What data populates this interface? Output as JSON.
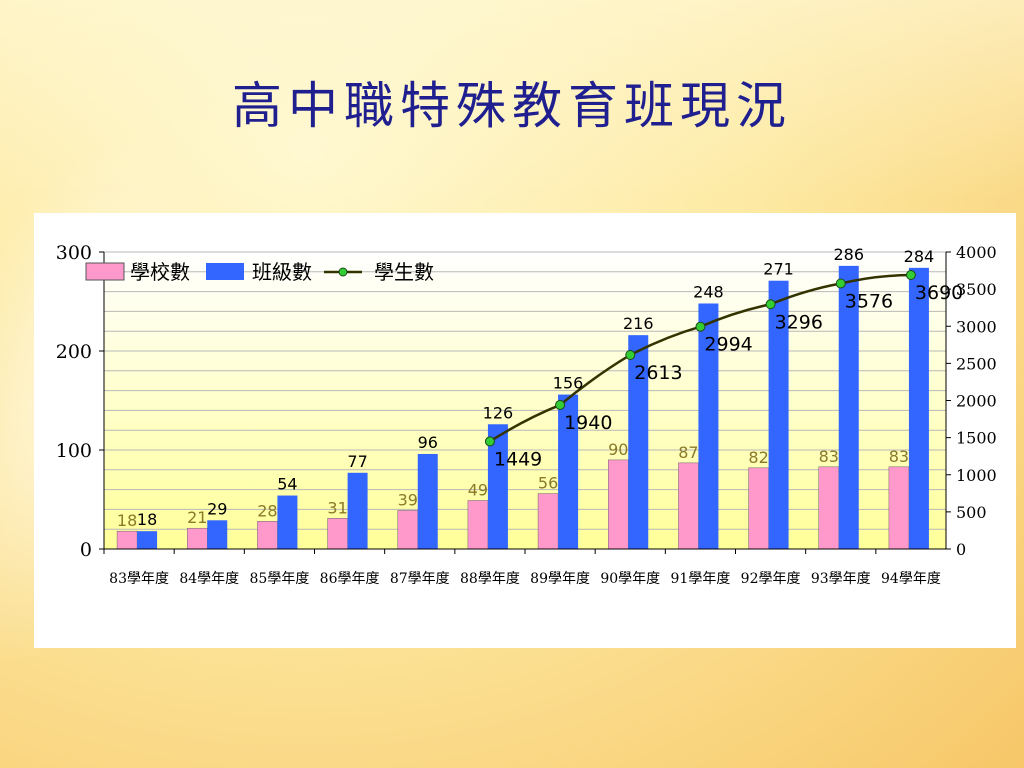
{
  "title": "高中職特殊教育班現況",
  "chart_data": {
    "type": "bar",
    "categories": [
      "83學年度",
      "84學年度",
      "85學年度",
      "86學年度",
      "87學年度",
      "88學年度",
      "89學年度",
      "90學年度",
      "91學年度",
      "92學年度",
      "93學年度",
      "94學年度"
    ],
    "series": [
      {
        "name": "學校數",
        "chart": "bar",
        "axis": "left",
        "color": "#ff99cc",
        "values": [
          18,
          21,
          28,
          31,
          39,
          49,
          56,
          90,
          87,
          82,
          83,
          83
        ],
        "label_color": "#8a7a2a"
      },
      {
        "name": "班級數",
        "chart": "bar",
        "axis": "left",
        "color": "#3366ff",
        "values": [
          18,
          29,
          54,
          77,
          96,
          126,
          156,
          216,
          248,
          271,
          286,
          284
        ],
        "label_color": "#000000"
      },
      {
        "name": "學生數",
        "chart": "line",
        "axis": "right",
        "color": "#333300",
        "marker_color": "#33cc33",
        "values": [
          null,
          null,
          null,
          null,
          null,
          1449,
          1940,
          2613,
          2994,
          3296,
          3576,
          3690
        ],
        "label_color": "#000000"
      }
    ],
    "left_axis": {
      "min": 0,
      "max": 300,
      "ticks": [
        "0",
        "100",
        "200",
        "300"
      ]
    },
    "right_axis": {
      "min": 0,
      "max": 4000,
      "ticks": [
        "0",
        "500",
        "1000",
        "1500",
        "2000",
        "2500",
        "3000",
        "3500",
        "4000"
      ]
    },
    "grid": true,
    "legend_position": "top-left"
  }
}
